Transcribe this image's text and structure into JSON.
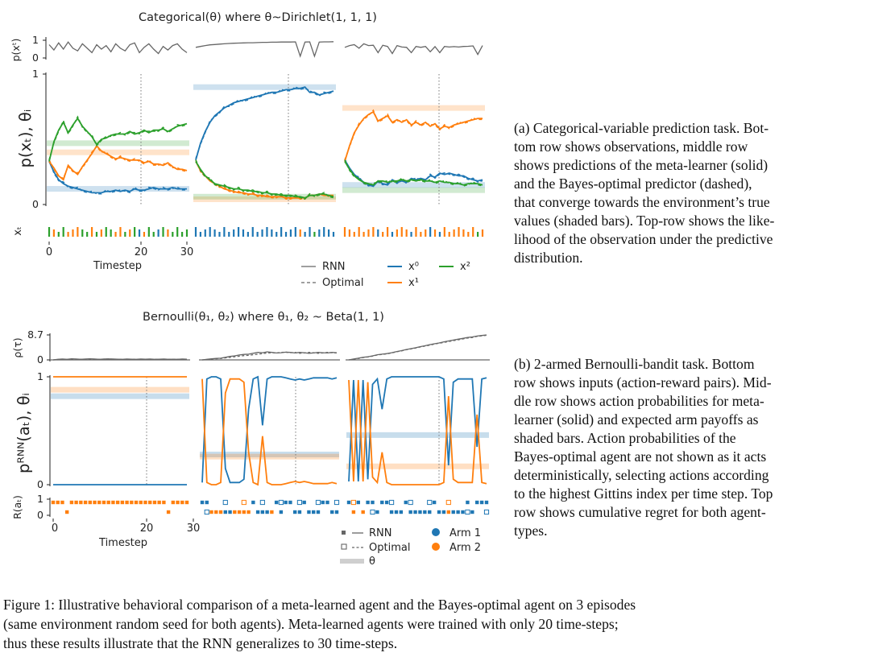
{
  "figure": {
    "caption": [
      "Figure 1: Illustrative behavioral comparison of a meta-learned agent and the Bayes-optimal agent on 3 episodes",
      "(same environment random seed for both agents). Meta-learned agents were trained with only 20 time-steps;",
      "thus these results illustrate that the RNN generalizes to 30 time-steps."
    ]
  },
  "panel_a": {
    "title": "Categorical(θ) where θ~Dirichlet(1, 1, 1)",
    "ylabel_top": "p(xᵗ)",
    "ylabel_mid": "p(xₜ), θᵢ",
    "ylabel_bot": "xₜ",
    "yticks_top": [
      "1",
      "0"
    ],
    "yticks_mid": [
      "1",
      "0"
    ],
    "xticks": [
      "0",
      "20",
      "30"
    ],
    "xlabel": "Timestep",
    "legend": {
      "rnn": "RNN",
      "optimal": "Optimal",
      "x0": "x⁰",
      "x1": "x¹",
      "x2": "x²"
    },
    "caption": [
      "(a) Categorical-variable prediction task. Bot-",
      "tom row shows observations, middle row",
      "shows predictions of the meta-learner (solid)",
      "and the Bayes-optimal predictor (dashed),",
      "that converge towards the environment’s true",
      "values (shaded bars). Top-row shows the like-",
      "lihood of the observation under the predictive",
      "distribution."
    ]
  },
  "panel_b": {
    "title": "Bernoulli(θ₁, θ₂) where θ₁, θ₂ ~ Beta(1, 1)",
    "ylabel_top": "ρ(τ)",
    "ylabel_mid": "pᴿᴺᴺ(aₜ), θᵢ",
    "ylabel_bot": "R(aₜ)",
    "yticks_top": [
      "8.7",
      "0"
    ],
    "yticks_mid": [
      "1",
      "0"
    ],
    "yticks_bot": [
      "1",
      "0"
    ],
    "xticks": [
      "0",
      "20",
      "30"
    ],
    "xlabel": "Timestep",
    "legend": {
      "rnn": "RNN",
      "optimal": "Optimal",
      "theta": "θ",
      "arm1": "Arm 1",
      "arm2": "Arm 2"
    },
    "caption": [
      "(b) 2-armed Bernoulli-bandit task. Bottom",
      "row shows inputs (action-reward pairs). Mid-",
      "dle row shows action probabilities for meta-",
      "learner (solid) and expected arm payoffs as",
      "shaded bars. Action probabilities of the",
      "Bayes-optimal agent are not shown as it acts",
      "deterministically, selecting actions according",
      "to the highest Gittins index per time step. Top",
      "row shows cumulative regret for both agent-",
      "types."
    ]
  },
  "colors": {
    "x0": "#1f77b4",
    "x1": "#ff7f0e",
    "x2": "#2ca02c",
    "grey": "#666666"
  },
  "chart_data": [
    {
      "type": "line",
      "panel": "a",
      "title": "Categorical(θ) where θ~Dirichlet(1, 1, 1)",
      "xlabel": "Timestep",
      "ylabel": "p(xₜ), θᵢ",
      "ylim": [
        0,
        1
      ],
      "xlim": [
        0,
        30
      ],
      "episodes": [
        {
          "theta": [
            0.12,
            0.4,
            0.47
          ],
          "series": [
            {
              "name": "x⁰",
              "values": [
                0.33,
                0.25,
                0.19,
                0.16,
                0.14,
                0.13,
                0.12,
                0.11,
                0.1,
                0.09,
                0.09,
                0.09,
                0.1,
                0.1,
                0.11,
                0.1,
                0.11,
                0.1,
                0.12,
                0.11,
                0.11,
                0.12,
                0.13,
                0.12,
                0.12,
                0.12,
                0.13,
                0.12,
                0.12,
                0.12
              ]
            },
            {
              "name": "x¹",
              "values": [
                0.33,
                0.28,
                0.22,
                0.19,
                0.3,
                0.26,
                0.23,
                0.29,
                0.34,
                0.39,
                0.45,
                0.41,
                0.39,
                0.37,
                0.35,
                0.36,
                0.35,
                0.34,
                0.34,
                0.34,
                0.32,
                0.33,
                0.31,
                0.31,
                0.3,
                0.32,
                0.29,
                0.27,
                0.27,
                0.26
              ]
            },
            {
              "name": "x²",
              "values": [
                0.33,
                0.48,
                0.57,
                0.63,
                0.55,
                0.61,
                0.66,
                0.6,
                0.56,
                0.52,
                0.46,
                0.5,
                0.51,
                0.53,
                0.54,
                0.54,
                0.54,
                0.56,
                0.54,
                0.55,
                0.57,
                0.55,
                0.57,
                0.57,
                0.58,
                0.56,
                0.58,
                0.6,
                0.61,
                0.62
              ]
            }
          ]
        },
        {
          "theta": [
            0.9,
            0.04,
            0.06
          ],
          "series": [
            {
              "name": "x⁰",
              "values": [
                0.34,
                0.47,
                0.56,
                0.63,
                0.68,
                0.71,
                0.74,
                0.76,
                0.78,
                0.79,
                0.8,
                0.81,
                0.82,
                0.83,
                0.84,
                0.85,
                0.86,
                0.86,
                0.87,
                0.88,
                0.88,
                0.89,
                0.89,
                0.9,
                0.86,
                0.86,
                0.84,
                0.85,
                0.86,
                0.87
              ]
            },
            {
              "name": "x¹",
              "values": [
                0.33,
                0.26,
                0.22,
                0.18,
                0.16,
                0.14,
                0.12,
                0.11,
                0.1,
                0.09,
                0.09,
                0.08,
                0.08,
                0.07,
                0.07,
                0.06,
                0.06,
                0.06,
                0.06,
                0.05,
                0.05,
                0.05,
                0.05,
                0.05,
                0.07,
                0.07,
                0.08,
                0.07,
                0.07,
                0.07
              ]
            },
            {
              "name": "x²",
              "values": [
                0.33,
                0.27,
                0.22,
                0.19,
                0.16,
                0.15,
                0.14,
                0.13,
                0.12,
                0.12,
                0.11,
                0.11,
                0.1,
                0.1,
                0.09,
                0.09,
                0.08,
                0.08,
                0.07,
                0.07,
                0.07,
                0.06,
                0.06,
                0.05,
                0.07,
                0.07,
                0.08,
                0.08,
                0.07,
                0.06
              ]
            }
          ]
        },
        {
          "theta": [
            0.15,
            0.74,
            0.11
          ],
          "series": [
            {
              "name": "x⁰",
              "values": [
                0.34,
                0.28,
                0.23,
                0.2,
                0.17,
                0.15,
                0.14,
                0.18,
                0.16,
                0.15,
                0.19,
                0.17,
                0.18,
                0.17,
                0.2,
                0.19,
                0.2,
                0.19,
                0.22,
                0.21,
                0.24,
                0.23,
                0.24,
                0.23,
                0.22,
                0.22,
                0.2,
                0.19,
                0.18,
                0.19
              ]
            },
            {
              "name": "x¹",
              "values": [
                0.33,
                0.45,
                0.55,
                0.61,
                0.66,
                0.69,
                0.71,
                0.64,
                0.66,
                0.68,
                0.63,
                0.65,
                0.63,
                0.65,
                0.61,
                0.63,
                0.61,
                0.63,
                0.6,
                0.62,
                0.58,
                0.6,
                0.59,
                0.61,
                0.62,
                0.63,
                0.64,
                0.65,
                0.66,
                0.66
              ]
            },
            {
              "name": "x²",
              "values": [
                0.33,
                0.27,
                0.22,
                0.19,
                0.17,
                0.16,
                0.15,
                0.18,
                0.18,
                0.17,
                0.18,
                0.18,
                0.19,
                0.18,
                0.19,
                0.18,
                0.19,
                0.18,
                0.18,
                0.17,
                0.18,
                0.17,
                0.17,
                0.16,
                0.16,
                0.15,
                0.16,
                0.16,
                0.16,
                0.15
              ]
            }
          ]
        }
      ]
    },
    {
      "type": "line",
      "panel": "b",
      "title": "Bernoulli(θ₁, θ₂) where θ₁, θ₂ ~ Beta(1, 1)",
      "xlabel": "Timestep",
      "ylabel": "pᴿᴺᴺ(aₜ), θᵢ",
      "ylim": [
        0,
        1
      ],
      "xlim": [
        0,
        30
      ],
      "episodes": [
        {
          "theta": [
            0.82,
            0.88
          ],
          "series": [
            {
              "name": "Arm 1",
              "values": [
                0,
                0,
                0,
                0,
                0,
                0,
                0,
                0,
                0,
                0,
                0,
                0,
                0,
                0,
                0,
                0,
                0,
                0,
                0,
                0,
                0,
                0,
                0,
                0,
                0,
                0,
                0,
                0,
                0,
                0
              ]
            },
            {
              "name": "Arm 2",
              "values": [
                1,
                1,
                1,
                1,
                1,
                1,
                1,
                1,
                1,
                1,
                1,
                1,
                1,
                1,
                1,
                1,
                1,
                1,
                1,
                1,
                1,
                1,
                1,
                1,
                1,
                1,
                1,
                1,
                1,
                1
              ]
            }
          ]
        },
        {
          "theta": [
            0.28,
            0.26
          ],
          "series": [
            {
              "name": "Arm 1",
              "values": [
                0.02,
                0.98,
                1,
                1,
                0.98,
                0.15,
                0.02,
                0.02,
                0.02,
                0.05,
                0.7,
                0.98,
                1,
                0.55,
                0.98,
                1,
                1,
                1,
                0.99,
                0.98,
                0.97,
                0.98,
                0.97,
                0.98,
                0.99,
                0.99,
                0.99,
                0.99,
                0.98,
                0.99
              ]
            },
            {
              "name": "Arm 2",
              "values": [
                0.98,
                0.02,
                0,
                0,
                0.02,
                0.85,
                0.98,
                0.98,
                0.98,
                0.95,
                0.3,
                0.02,
                0,
                0.45,
                0.02,
                0,
                0,
                0,
                0.01,
                0.02,
                0.03,
                0.02,
                0.03,
                0.02,
                0.01,
                0.01,
                0.01,
                0.01,
                0.02,
                0.01
              ]
            }
          ]
        },
        {
          "theta": [
            0.46,
            0.17
          ],
          "series": [
            {
              "name": "Arm 1",
              "values": [
                0.03,
                0.97,
                0.03,
                0.97,
                0.05,
                0.93,
                0.98,
                0.7,
                0.98,
                1,
                1,
                1,
                1,
                1,
                1,
                1,
                1,
                1,
                1,
                1,
                0.98,
                0.18,
                0.95,
                0.98,
                0.98,
                0.98,
                0.98,
                0.35,
                0.98,
                0.99
              ]
            },
            {
              "name": "Arm 2",
              "values": [
                0.97,
                0.03,
                0.97,
                0.03,
                0.95,
                0.07,
                0.02,
                0.3,
                0.02,
                0,
                0,
                0,
                0,
                0,
                0,
                0,
                0,
                0,
                0,
                0,
                0.02,
                0.82,
                0.05,
                0.02,
                0.02,
                0.02,
                0.02,
                0.65,
                0.02,
                0.01
              ]
            }
          ]
        }
      ]
    }
  ]
}
